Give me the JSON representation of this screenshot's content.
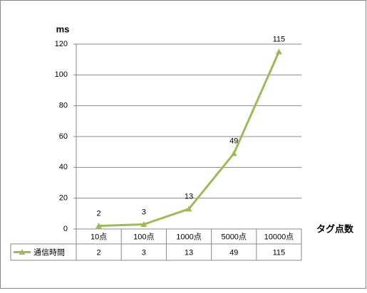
{
  "chart_data": {
    "type": "line",
    "y_label": "ms",
    "x_label": "タグ点数",
    "categories": [
      "10点",
      "100点",
      "1000点",
      "5000点",
      "10000点"
    ],
    "series": [
      {
        "name": "通信時間",
        "color": "#9bbb59",
        "values": [
          2,
          3,
          13,
          49,
          115
        ]
      }
    ],
    "ylim": [
      0,
      120
    ],
    "yticks": [
      0,
      20,
      40,
      60,
      80,
      100,
      120
    ],
    "grid": true
  }
}
